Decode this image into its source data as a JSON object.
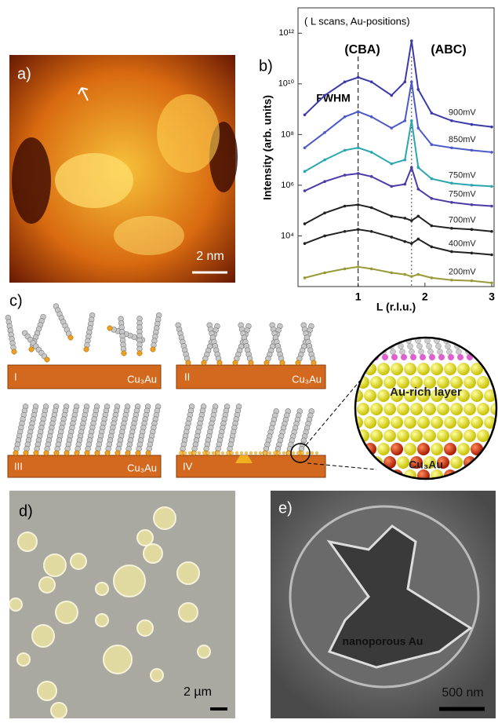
{
  "chart_data": {
    "type": "line",
    "panel_label": "b)",
    "title": "( L scans, Au-positions)",
    "annotations": [
      "(CBA)",
      "(ABC)",
      "FWHM"
    ],
    "x_label": "L (r.l.u.)",
    "y_label": "Intensity (arb. units)",
    "log_y": true,
    "x": [
      0.2,
      0.5,
      0.8,
      1.0,
      1.2,
      1.5,
      1.7,
      1.8,
      1.9,
      2.1,
      2.4,
      2.7,
      3.0
    ],
    "xlim": [
      0.1,
      3
    ],
    "xticks": [
      1,
      2,
      3
    ],
    "ylim": [
      100,
      10000000000000
    ],
    "yticks": [
      {
        "value": 10000,
        "label": "10⁴"
      },
      {
        "value": 1000000,
        "label": "10⁶"
      },
      {
        "value": 100000000,
        "label": "10⁸"
      },
      {
        "value": 10000000000,
        "label": "10¹⁰"
      },
      {
        "value": 1000000000000,
        "label": "10¹²"
      }
    ],
    "series": [
      {
        "name": "900mV",
        "color": "#3b3aa8",
        "values": [
          600000000,
          3500000000,
          12000000000,
          18000000000,
          12000000000,
          3500000000,
          12000000000,
          500000000000,
          6000000000,
          700000000,
          350000000,
          250000000,
          200000000
        ]
      },
      {
        "name": "850mV",
        "color": "#4a5ac8",
        "values": [
          30000000,
          120000000,
          500000000,
          800000000,
          500000000,
          180000000,
          350000000,
          12000000000,
          180000000,
          40000000,
          30000000,
          24000000,
          20000000
        ]
      },
      {
        "name": "750mV",
        "color": "#2aa6b0",
        "values": [
          3500000,
          10000000,
          24000000,
          30000000,
          20000000,
          7000000,
          10000000,
          350000000,
          5000000,
          1800000,
          1200000,
          1000000,
          900000
        ]
      },
      {
        "name": "750mV",
        "color": "#4b3aa8",
        "values": [
          600000,
          1400000,
          2500000,
          2900000,
          2200000,
          900000,
          1100000,
          5000000,
          700000,
          300000,
          210000,
          170000,
          150000
        ]
      },
      {
        "name": "700mV",
        "color": "#222222",
        "values": [
          30000,
          80000,
          150000,
          170000,
          130000,
          60000,
          50000,
          40000,
          60000,
          25000,
          20000,
          18000,
          15000
        ]
      },
      {
        "name": "400mV",
        "color": "#222222",
        "values": [
          5000,
          10000,
          15000,
          18000,
          15000,
          9000,
          6000,
          5000,
          7500,
          3700,
          2400,
          2100,
          1800
        ]
      },
      {
        "name": "200mV",
        "color": "#9a9a3a",
        "values": [
          220,
          350,
          500,
          600,
          500,
          350,
          300,
          250,
          300,
          220,
          180,
          170,
          140
        ]
      }
    ]
  },
  "panel_a": {
    "label": "a)",
    "scale_bar": "2 nm"
  },
  "panel_c": {
    "label": "c)",
    "stages": [
      "I",
      "II",
      "III",
      "IV"
    ],
    "substrate": "Cu₃Au",
    "zoom_labels": [
      "Au-rich layer",
      "Cu₃Au"
    ]
  },
  "panel_d": {
    "label": "d)",
    "scale_bar": "2 µm"
  },
  "panel_e": {
    "label": "e)",
    "annotation": "nanoporous Au",
    "scale_bar": "500 nm"
  }
}
